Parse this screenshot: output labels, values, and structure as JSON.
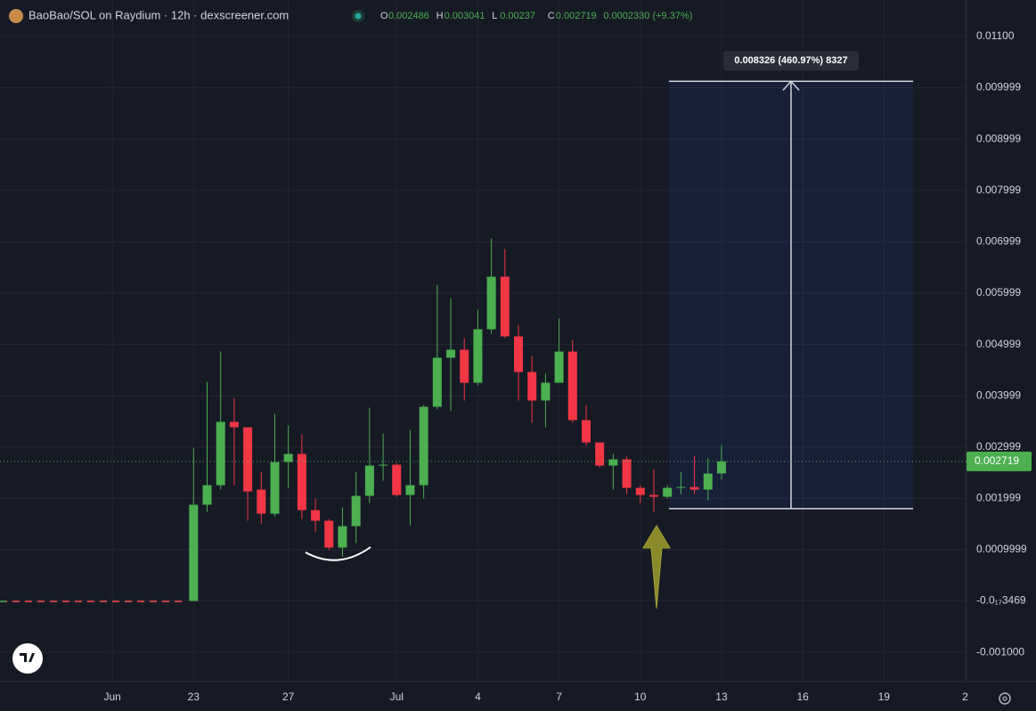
{
  "chart_data": {
    "type": "candlestick",
    "title": "BaoBao/SOL on Raydium · 12h · dexscreener.com",
    "ohlc_header": [
      {
        "label": "O",
        "value": 0.002486
      },
      {
        "label": "H",
        "value": 0.003041
      },
      {
        "label": "L",
        "value": 0.00237
      },
      {
        "label": "C",
        "value": 0.002719
      }
    ],
    "change_label": "0.0002330 (+9.37%)",
    "last_price": 0.002719,
    "up_color": "#4caf50",
    "down_color": "#f23645",
    "open": [
      0,
      0.001875,
      0.002257,
      0.00349,
      0.003385,
      0.00217,
      0.001701,
      0.002708,
      0.002865,
      0.001771,
      0.001563,
      0.001042,
      0.001458,
      0.002049,
      0.002639,
      0.002656,
      0.002066,
      0.002257,
      0.003785,
      0.00474,
      0.004896,
      0.004253,
      0.005295,
      0.006319,
      0.005156,
      0.004462,
      0.003906,
      0.004253,
      0.004861,
      0.003524,
      0.00309,
      0.002639,
      0.00276,
      0.002205,
      0.002066,
      0.002031,
      0.002205,
      0.002222,
      0.00217,
      0.002486
    ],
    "high": [
      0.002986,
      0.004271,
      0.004861,
      0.003958,
      0.003385,
      0.002517,
      0.003646,
      0.00342,
      0.003247,
      0.001997,
      0.001597,
      0.001823,
      0.002517,
      0.003767,
      0.003264,
      0.002691,
      0.003333,
      0.003819,
      0.006163,
      0.005903,
      0.005122,
      0.005677,
      0.007066,
      0.006858,
      0.005382,
      0.004774,
      0.004427,
      0.005503,
      0.005087,
      0.003819,
      0.00309,
      0.002865,
      0.002813,
      0.002257,
      0.002569,
      0.002257,
      0.002517,
      0.00283,
      0.002778,
      0.003041
    ],
    "low": [
      0,
      0.001736,
      0.00217,
      0.002257,
      0.001563,
      0.00151,
      0.001649,
      0.002205,
      0.001597,
      0.001354,
      0.00099,
      0.000868,
      0.001128,
      0.00191,
      0.002344,
      0.002031,
      0.001476,
      0.001997,
      0.003733,
      0.003698,
      0.003906,
      0.004201,
      0.005208,
      0.005122,
      0.003906,
      0.003472,
      0.003385,
      0.004253,
      0.003472,
      0.003038,
      0.002604,
      0.00217,
      0.002083,
      0.00191,
      0.001736,
      0.001997,
      0.002083,
      0.002083,
      0.001962,
      0.00237
    ],
    "close": [
      0.001875,
      0.002257,
      0.00349,
      0.003385,
      0.002135,
      0.001701,
      0.002708,
      0.002865,
      0.001771,
      0.001563,
      0.001042,
      0.001458,
      0.002049,
      0.002639,
      0.002656,
      0.002066,
      0.002257,
      0.003785,
      0.00474,
      0.004896,
      0.004253,
      0.005295,
      0.006319,
      0.005156,
      0.004462,
      0.003906,
      0.004253,
      0.004861,
      0.003524,
      0.00309,
      0.002639,
      0.00276,
      0.002205,
      0.002066,
      0.002031,
      0.002205,
      0.002222,
      0.00217,
      0.002483,
      0.002719
    ],
    "xlim": [
      -14.3,
      57.1
    ],
    "xticks": [
      {
        "value": -6,
        "label": "Jun"
      },
      {
        "value": 0,
        "label": "23"
      },
      {
        "value": 7,
        "label": "27"
      },
      {
        "value": 15,
        "label": "Jul"
      },
      {
        "value": 21,
        "label": "4"
      },
      {
        "value": 27,
        "label": "7"
      },
      {
        "value": 33,
        "label": "10"
      },
      {
        "value": 39,
        "label": "13"
      },
      {
        "value": 45,
        "label": "16"
      },
      {
        "value": 51,
        "label": "19"
      },
      {
        "value": 57,
        "label": "2"
      }
    ],
    "ylim": [
      -0.00157,
      0.01171
    ],
    "yticks": [
      {
        "value": 0.011,
        "label": "0.01100"
      },
      0.009999,
      0.008999,
      0.007999,
      0.006999,
      0.005999,
      0.004999,
      0.003999,
      0.002999,
      0.001999,
      0.0009999,
      {
        "value": -3.469e-18,
        "label": "-0.0₁₇3469"
      },
      {
        "value": -0.001,
        "label": "-0.001000"
      }
    ],
    "grid": true,
    "measure": {
      "label": "0.008326 (460.97%) 8327",
      "from": 0.0018,
      "to": 0.010126
    }
  }
}
